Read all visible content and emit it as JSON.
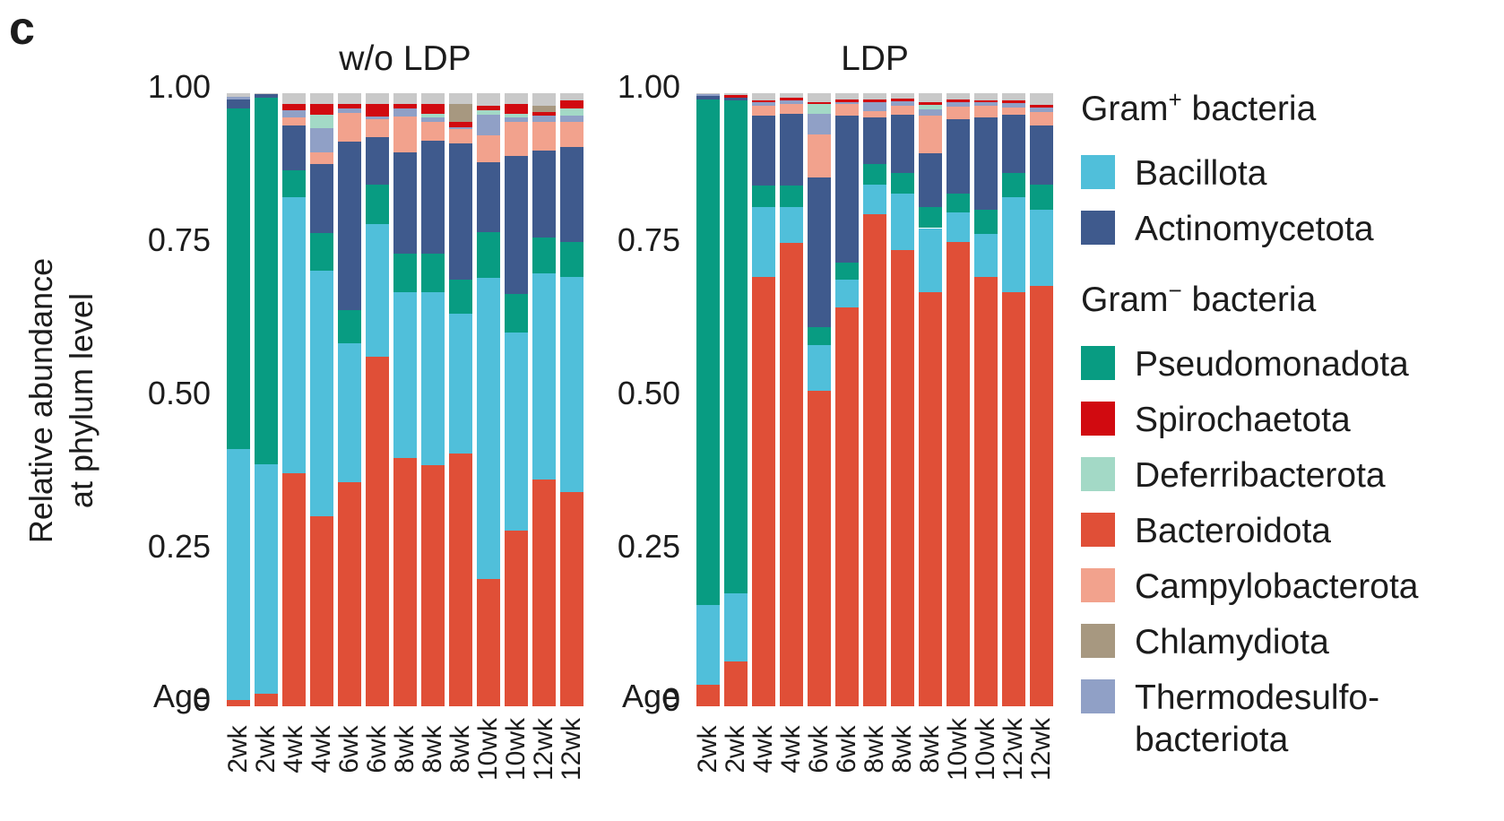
{
  "panel_label": "c",
  "ylabel_line1": "Relative abundance",
  "ylabel_line2": "at phylum level",
  "age_label": "Age",
  "text_color": "#1c1c1c",
  "chart_data": {
    "type": "bar",
    "stacked": true,
    "grid": false,
    "ylim": [
      0,
      1
    ],
    "yticks": [
      {
        "label": "1.00",
        "value": 1.0
      },
      {
        "label": "0.75",
        "value": 0.75
      },
      {
        "label": "0.50",
        "value": 0.5
      },
      {
        "label": "0.25",
        "value": 0.25
      },
      {
        "label": "0",
        "value": 0
      }
    ],
    "stack_order_bottom_to_top": [
      "Bacteroidota",
      "Bacillota",
      "Pseudomonadota",
      "Actinomycetota",
      "Campylobacterota",
      "Thermodesulfobacteriota",
      "Deferribacterota",
      "Spirochaetota",
      "Chlamydiota",
      "Other"
    ],
    "series_colors": {
      "Bacteroidota": "#E04F37",
      "Bacillota": "#50BFDA",
      "Pseudomonadota": "#089C82",
      "Actinomycetota": "#3F5A8D",
      "Campylobacterota": "#F2A28D",
      "Thermodesulfobacteriota": "#90A0C6",
      "Deferribacterota": "#A3D9C6",
      "Spirochaetota": "#D10A10",
      "Chlamydiota": "#A79880",
      "Other": "#C9C9C9"
    },
    "groups": [
      {
        "title": "w/o LDP",
        "categories": [
          "2wk",
          "2wk",
          "4wk",
          "4wk",
          "6wk",
          "6wk",
          "8wk",
          "8wk",
          "8wk",
          "10wk",
          "10wk",
          "12wk",
          "12wk"
        ],
        "bars": [
          [
            0.01,
            0.41,
            0.555,
            0.015,
            0.0,
            0.004,
            0.0,
            0.0,
            0.0,
            0.006
          ],
          [
            0.02,
            0.375,
            0.598,
            0.005,
            0.0,
            0.0,
            0.0,
            0.0,
            0.0,
            0.002
          ],
          [
            0.38,
            0.45,
            0.045,
            0.073,
            0.012,
            0.012,
            0.0,
            0.01,
            0.0,
            0.018
          ],
          [
            0.31,
            0.4,
            0.062,
            0.112,
            0.02,
            0.039,
            0.022,
            0.017,
            0.0,
            0.018
          ],
          [
            0.365,
            0.227,
            0.054,
            0.275,
            0.047,
            0.007,
            0.0,
            0.007,
            0.0,
            0.018
          ],
          [
            0.57,
            0.216,
            0.065,
            0.078,
            0.028,
            0.005,
            0.0,
            0.02,
            0.0,
            0.018
          ],
          [
            0.405,
            0.27,
            0.063,
            0.166,
            0.058,
            0.013,
            0.0,
            0.007,
            0.0,
            0.018
          ],
          [
            0.393,
            0.282,
            0.063,
            0.185,
            0.03,
            0.007,
            0.007,
            0.015,
            0.0,
            0.018
          ],
          [
            0.412,
            0.228,
            0.056,
            0.222,
            0.023,
            0.004,
            0.0,
            0.008,
            0.029,
            0.018
          ],
          [
            0.208,
            0.491,
            0.075,
            0.113,
            0.044,
            0.034,
            0.007,
            0.008,
            0.0,
            0.02
          ],
          [
            0.287,
            0.322,
            0.063,
            0.225,
            0.056,
            0.007,
            0.007,
            0.015,
            0.0,
            0.018
          ],
          [
            0.37,
            0.336,
            0.059,
            0.141,
            0.047,
            0.01,
            0.0,
            0.007,
            0.01,
            0.02
          ],
          [
            0.35,
            0.35,
            0.058,
            0.155,
            0.04,
            0.011,
            0.011,
            0.014,
            0.0,
            0.011
          ]
        ]
      },
      {
        "title": "LDP",
        "categories": [
          "2wk",
          "2wk",
          "4wk",
          "4wk",
          "6wk",
          "6wk",
          "8wk",
          "8wk",
          "8wk",
          "10wk",
          "10wk",
          "12wk",
          "12wk"
        ],
        "bars": [
          [
            0.035,
            0.13,
            0.825,
            0.005,
            0.0,
            0.003,
            0.0,
            0.0,
            0.0,
            0.002
          ],
          [
            0.073,
            0.111,
            0.805,
            0.004,
            0.0,
            0.0,
            0.0,
            0.004,
            0.0,
            0.003
          ],
          [
            0.7,
            0.115,
            0.034,
            0.115,
            0.016,
            0.005,
            0.0,
            0.004,
            0.0,
            0.011
          ],
          [
            0.756,
            0.059,
            0.034,
            0.118,
            0.016,
            0.005,
            0.0,
            0.004,
            0.0,
            0.008
          ],
          [
            0.515,
            0.074,
            0.029,
            0.244,
            0.071,
            0.034,
            0.015,
            0.004,
            0.0,
            0.014
          ],
          [
            0.65,
            0.046,
            0.027,
            0.24,
            0.019,
            0.004,
            0.0,
            0.004,
            0.0,
            0.01
          ],
          [
            0.802,
            0.049,
            0.034,
            0.076,
            0.01,
            0.015,
            0.0,
            0.004,
            0.0,
            0.01
          ],
          [
            0.744,
            0.092,
            0.034,
            0.095,
            0.015,
            0.007,
            0.0,
            0.004,
            0.0,
            0.009
          ],
          [
            0.675,
            0.105,
            0.034,
            0.088,
            0.062,
            0.01,
            0.007,
            0.004,
            0.0,
            0.015
          ],
          [
            0.758,
            0.047,
            0.031,
            0.122,
            0.02,
            0.008,
            0.0,
            0.004,
            0.0,
            0.01
          ],
          [
            0.7,
            0.07,
            0.04,
            0.15,
            0.02,
            0.005,
            0.0,
            0.004,
            0.0,
            0.011
          ],
          [
            0.675,
            0.156,
            0.039,
            0.095,
            0.011,
            0.008,
            0.0,
            0.004,
            0.0,
            0.012
          ],
          [
            0.685,
            0.125,
            0.041,
            0.097,
            0.022,
            0.007,
            0.0,
            0.004,
            0.0,
            0.019
          ]
        ]
      }
    ]
  },
  "legend": {
    "sections": [
      {
        "header": {
          "prefix": "Gram",
          "sup": "+",
          "suffix": " bacteria"
        },
        "items": [
          {
            "label": "Bacillota",
            "label2": "",
            "series": "Bacillota"
          },
          {
            "label": " Actinomycetota",
            "label2": "",
            "series": "Actinomycetota"
          }
        ]
      },
      {
        "header": {
          "prefix": "Gram",
          "sup": "−",
          "suffix": " bacteria"
        },
        "items": [
          {
            "label": "Pseudomonadota",
            "label2": "",
            "series": "Pseudomonadota"
          },
          {
            "label": "Spirochaetota",
            "label2": "",
            "series": "Spirochaetota"
          },
          {
            "label": "Deferribacterota",
            "label2": "",
            "series": "Deferribacterota"
          },
          {
            "label": "Bacteroidota",
            "label2": "",
            "series": "Bacteroidota"
          },
          {
            "label": "Campylobacterota",
            "label2": "",
            "series": "Campylobacterota"
          },
          {
            "label": "Chlamydiota",
            "label2": "",
            "series": "Chlamydiota"
          },
          {
            "label": "Thermodesulfo-",
            "label2": "bacteriota",
            "series": "Thermodesulfobacteriota"
          }
        ]
      }
    ]
  },
  "layout_note_plot_lefts": [
    253,
    777
  ]
}
